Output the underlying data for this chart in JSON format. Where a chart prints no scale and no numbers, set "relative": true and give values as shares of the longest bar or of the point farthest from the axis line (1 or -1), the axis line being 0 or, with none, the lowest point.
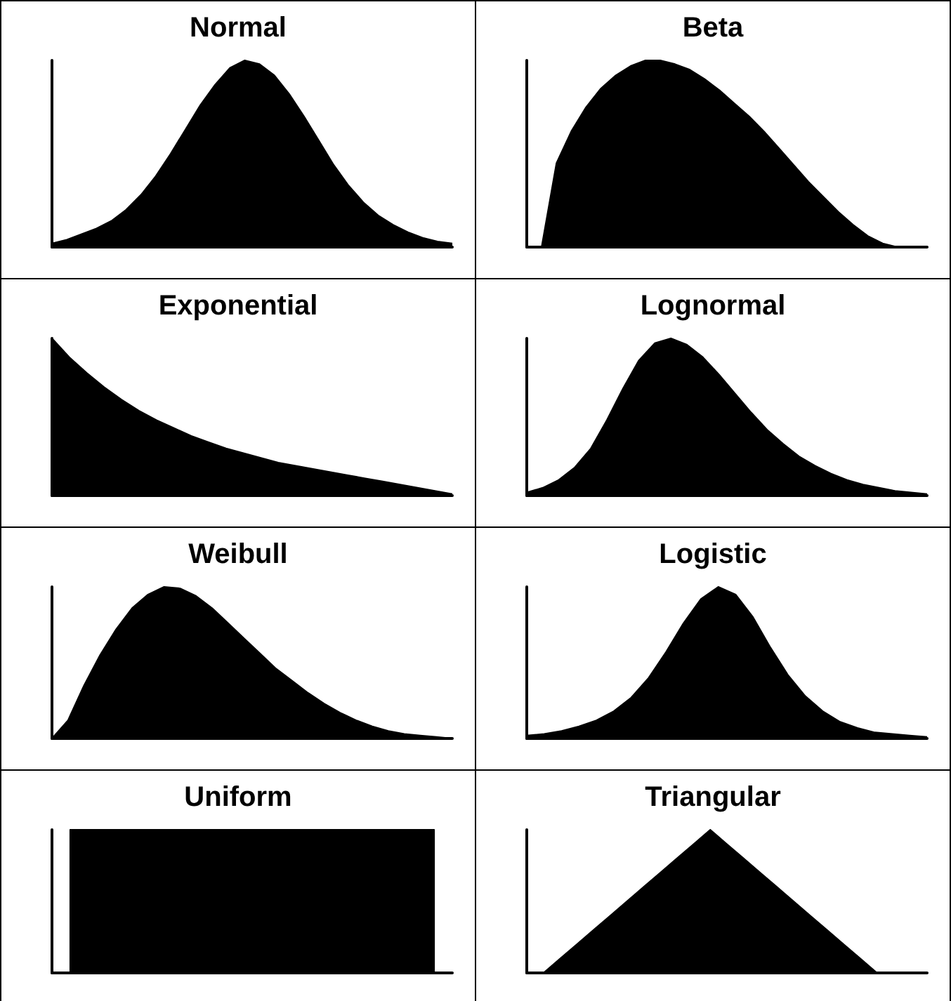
{
  "chart_data": [
    {
      "type": "area",
      "title": "Normal",
      "relative": true,
      "color": "#000000",
      "categories": [
        null,
        null,
        null,
        null,
        null,
        null,
        null,
        null,
        null,
        null,
        null,
        null,
        null,
        null,
        null,
        null,
        null,
        null,
        null,
        null,
        null,
        null,
        null,
        null,
        null,
        null,
        null,
        null
      ],
      "values": [
        0.02,
        0.04,
        0.07,
        0.1,
        0.14,
        0.2,
        0.28,
        0.38,
        0.5,
        0.63,
        0.76,
        0.87,
        0.96,
        1.0,
        0.98,
        0.92,
        0.82,
        0.7,
        0.57,
        0.44,
        0.33,
        0.24,
        0.17,
        0.12,
        0.08,
        0.05,
        0.03,
        0.02
      ]
    },
    {
      "type": "area",
      "title": "Beta",
      "relative": true,
      "color": "#000000",
      "categories": [
        null,
        null,
        null,
        null,
        null,
        null,
        null,
        null,
        null,
        null,
        null,
        null,
        null,
        null,
        null,
        null,
        null,
        null,
        null,
        null,
        null,
        null,
        null,
        null,
        null,
        null,
        null,
        null
      ],
      "values": [
        0,
        0,
        0.45,
        0.62,
        0.75,
        0.85,
        0.92,
        0.97,
        1.0,
        1.0,
        0.98,
        0.95,
        0.9,
        0.84,
        0.77,
        0.7,
        0.62,
        0.53,
        0.44,
        0.35,
        0.27,
        0.19,
        0.12,
        0.06,
        0.02,
        0,
        0,
        0
      ]
    },
    {
      "type": "area",
      "title": "Exponential",
      "relative": true,
      "color": "#000000",
      "categories": [
        null,
        null,
        null,
        null,
        null,
        null,
        null,
        null,
        null,
        null,
        null,
        null,
        null,
        null,
        null,
        null,
        null,
        null,
        null,
        null,
        null,
        null,
        null,
        null
      ],
      "values": [
        1,
        0.88,
        0.78,
        0.69,
        0.61,
        0.54,
        0.48,
        0.43,
        0.38,
        0.34,
        0.3,
        0.27,
        0.24,
        0.21,
        0.19,
        0.17,
        0.15,
        0.13,
        0.11,
        0.09,
        0.07,
        0.05,
        0.03,
        0.01
      ]
    },
    {
      "type": "area",
      "title": "Lognormal",
      "relative": true,
      "color": "#000000",
      "categories": [
        null,
        null,
        null,
        null,
        null,
        null,
        null,
        null,
        null,
        null,
        null,
        null,
        null,
        null,
        null,
        null,
        null,
        null,
        null,
        null,
        null,
        null,
        null,
        null,
        null,
        null
      ],
      "values": [
        0.02,
        0.05,
        0.1,
        0.18,
        0.3,
        0.48,
        0.68,
        0.86,
        0.97,
        1.0,
        0.96,
        0.88,
        0.77,
        0.65,
        0.53,
        0.42,
        0.33,
        0.25,
        0.19,
        0.14,
        0.1,
        0.07,
        0.05,
        0.03,
        0.02,
        0.01
      ]
    },
    {
      "type": "area",
      "title": "Weibull",
      "relative": true,
      "color": "#000000",
      "categories": [
        null,
        null,
        null,
        null,
        null,
        null,
        null,
        null,
        null,
        null,
        null,
        null,
        null,
        null,
        null,
        null,
        null,
        null,
        null,
        null,
        null,
        null,
        null,
        null,
        null,
        null
      ],
      "values": [
        0,
        0.12,
        0.35,
        0.55,
        0.72,
        0.86,
        0.95,
        1.0,
        0.99,
        0.94,
        0.86,
        0.76,
        0.66,
        0.56,
        0.46,
        0.38,
        0.3,
        0.23,
        0.17,
        0.12,
        0.08,
        0.05,
        0.03,
        0.02,
        0.01,
        0
      ]
    },
    {
      "type": "area",
      "title": "Logistic",
      "relative": true,
      "color": "#000000",
      "categories": [
        null,
        null,
        null,
        null,
        null,
        null,
        null,
        null,
        null,
        null,
        null,
        null,
        null,
        null,
        null,
        null,
        null,
        null,
        null,
        null,
        null,
        null,
        null,
        null
      ],
      "values": [
        0.02,
        0.03,
        0.05,
        0.08,
        0.12,
        0.18,
        0.27,
        0.4,
        0.57,
        0.76,
        0.92,
        1.0,
        0.95,
        0.8,
        0.6,
        0.42,
        0.28,
        0.18,
        0.11,
        0.07,
        0.04,
        0.03,
        0.02,
        0.01
      ]
    },
    {
      "type": "step",
      "title": "Uniform",
      "relative": true,
      "color": "#000000",
      "categories": [
        null,
        null,
        null,
        null,
        null,
        null,
        null,
        null,
        null,
        null,
        null,
        null
      ],
      "values": [
        0,
        1,
        1,
        1,
        1,
        1,
        1,
        1,
        1,
        1,
        1,
        0
      ]
    },
    {
      "type": "area",
      "title": "Triangular",
      "relative": true,
      "color": "#000000",
      "categories": [
        null,
        null,
        null,
        null,
        null,
        null,
        null,
        null,
        null,
        null,
        null,
        null,
        null,
        null,
        null,
        null,
        null,
        null,
        null,
        null,
        null,
        null,
        null,
        null,
        null
      ],
      "values": [
        0,
        0,
        0.1,
        0.2,
        0.3,
        0.4,
        0.5,
        0.6,
        0.7,
        0.8,
        0.9,
        1,
        0.9,
        0.8,
        0.7,
        0.6,
        0.5,
        0.4,
        0.3,
        0.2,
        0.1,
        0,
        0,
        0,
        0
      ]
    }
  ]
}
